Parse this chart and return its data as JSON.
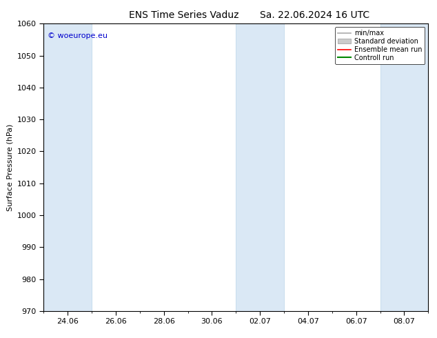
{
  "title": "ENS Time Series Vaduz",
  "subtitle": "Sa. 22.06.2024 16 UTC",
  "ylabel": "Surface Pressure (hPa)",
  "ylim": [
    970,
    1060
  ],
  "yticks": [
    970,
    980,
    990,
    1000,
    1010,
    1020,
    1030,
    1040,
    1050,
    1060
  ],
  "xtick_labels": [
    "24.06",
    "26.06",
    "28.06",
    "30.06",
    "02.07",
    "04.07",
    "06.07",
    "08.07"
  ],
  "watermark": "© woeurope.eu",
  "watermark_color": "#0000cc",
  "shaded_bands": [
    {
      "xmin": 0,
      "xmax": 2
    },
    {
      "xmin": 8,
      "xmax": 10
    },
    {
      "xmin": 14,
      "xmax": 16
    }
  ],
  "band_color": "#dae8f5",
  "band_edge_color": "#b8d4e8",
  "background_color": "#ffffff",
  "legend_labels": [
    "min/max",
    "Standard deviation",
    "Ensemble mean run",
    "Controll run"
  ],
  "minmax_color": "#aaaaaa",
  "std_color": "#cccccc",
  "ens_color": "#ff0000",
  "ctrl_color": "#008800",
  "title_fontsize": 10,
  "ylabel_fontsize": 8,
  "tick_fontsize": 8,
  "legend_fontsize": 7,
  "watermark_fontsize": 8
}
